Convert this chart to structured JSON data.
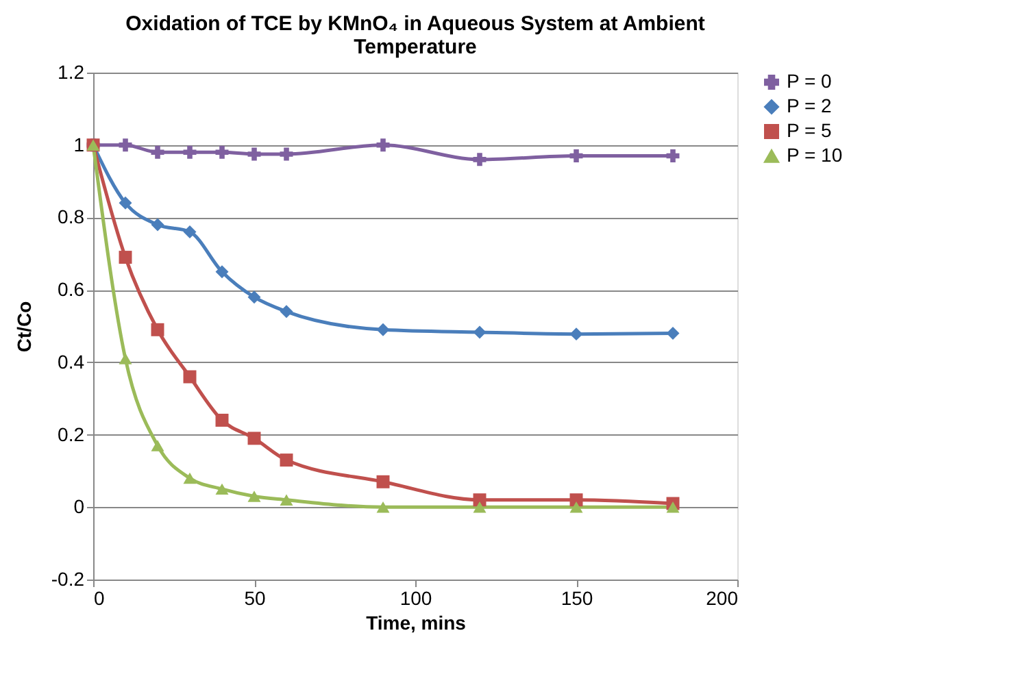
{
  "chart_data": {
    "type": "line",
    "title": "Oxidation of TCE by KMnO₄ in Aqueous System at Ambient Temperature",
    "xlabel": "Time, mins",
    "ylabel": "Ct/Co",
    "x": [
      0,
      10,
      20,
      30,
      40,
      50,
      60,
      90,
      120,
      150,
      180
    ],
    "series": [
      {
        "name": "P = 0",
        "color": "#7f60a0",
        "marker": "cross",
        "values": [
          1,
          1,
          0.98,
          0.98,
          0.98,
          0.975,
          0.975,
          1.0,
          0.96,
          0.97,
          0.97
        ]
      },
      {
        "name": "P = 2",
        "color": "#4a7ebb",
        "marker": "diamond",
        "values": [
          1,
          0.84,
          0.78,
          0.76,
          0.65,
          0.58,
          0.54,
          0.49,
          0.483,
          0.478,
          0.48
        ]
      },
      {
        "name": "P = 5",
        "color": "#c0504d",
        "marker": "square",
        "values": [
          1,
          0.69,
          0.49,
          0.36,
          0.24,
          0.19,
          0.13,
          0.07,
          0.02,
          0.02,
          0.01
        ]
      },
      {
        "name": "P = 10",
        "color": "#9bbb59",
        "marker": "triangle",
        "values": [
          1,
          0.41,
          0.17,
          0.08,
          0.05,
          0.03,
          0.02,
          0,
          0,
          0,
          0
        ]
      }
    ],
    "xlim": [
      0,
      200
    ],
    "xticks": [
      0,
      50,
      100,
      150,
      200
    ],
    "ylim": [
      -0.2,
      1.2
    ],
    "yticks": [
      -0.2,
      0,
      0.2,
      0.4,
      0.6,
      0.8,
      1,
      1.2
    ],
    "grid": "y",
    "legend": "right",
    "line_style": "solid"
  }
}
